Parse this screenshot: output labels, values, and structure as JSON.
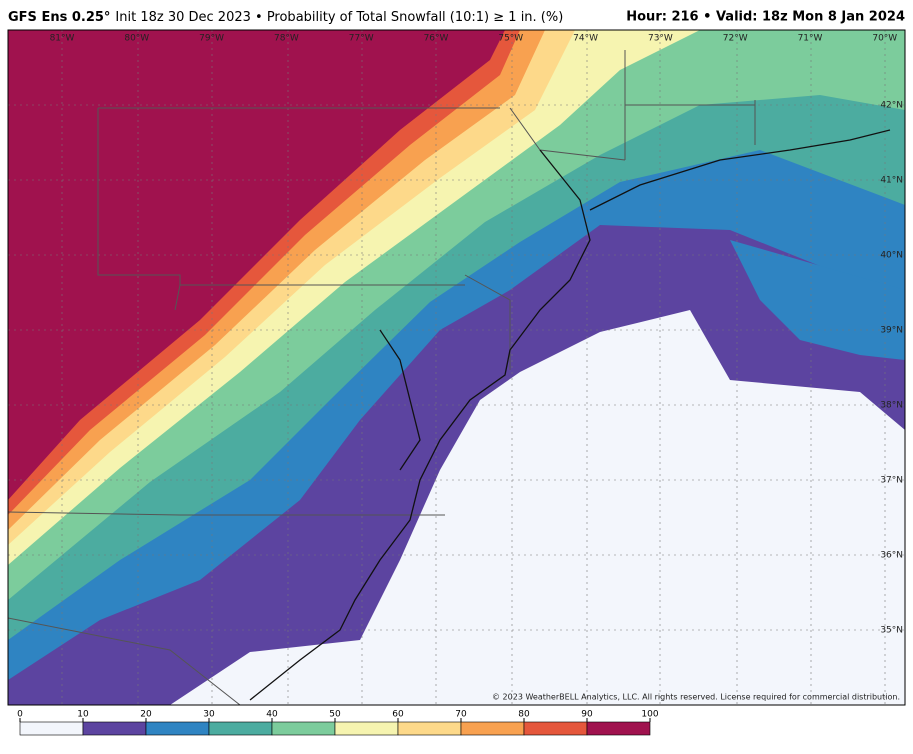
{
  "header": {
    "model": "GFS Ens 0.25°",
    "subtitle": "Init 18z 30 Dec 2023 • Probability of Total Snowfall (10:1) ≥ 1 in. (%)",
    "valid": "Hour: 216 • Valid: 18z Mon 8 Jan 2024"
  },
  "longitudes": [
    "81°W",
    "80°W",
    "79°W",
    "78°W",
    "77°W",
    "76°W",
    "75°W",
    "74°W",
    "73°W",
    "72°W",
    "71°W",
    "70°W"
  ],
  "latitudes": [
    "42°N",
    "41°N",
    "40°N",
    "39°N",
    "38°N",
    "37°N",
    "36°N",
    "35°N"
  ],
  "copyright": "© 2023 WeatherBELL Analytics, LLC. All rights reserved. License required for commercial distribution.",
  "colorbar": {
    "ticks": [
      0,
      10,
      20,
      30,
      40,
      50,
      60,
      70,
      80,
      90,
      100
    ],
    "colors": [
      "#f3f6fc",
      "#5c44a0",
      "#2f84c2",
      "#4caca0",
      "#7ccc9c",
      "#f6f4b0",
      "#fdd98a",
      "#f8a150",
      "#e5573c",
      "#a0124e"
    ]
  }
}
